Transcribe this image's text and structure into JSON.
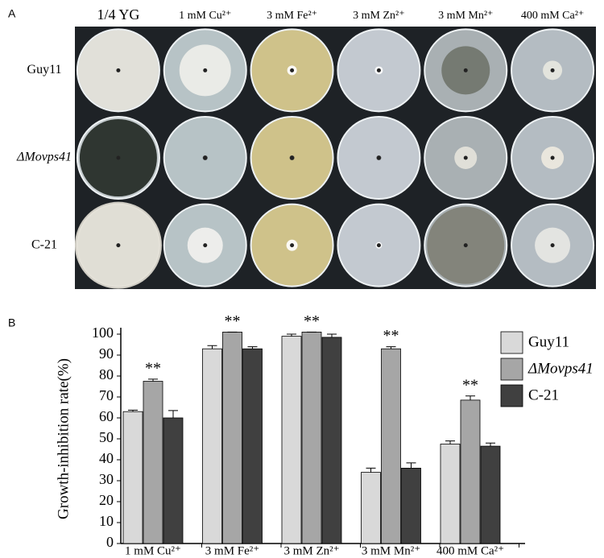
{
  "panel_a": {
    "label": "A",
    "columns": [
      "1/4 YG",
      "1 mM Cu²⁺",
      "3 mM Fe²⁺",
      "3 mM Zn²⁺",
      "3 mM Mn²⁺",
      "400 mM Ca²⁺"
    ],
    "rows": [
      "Guy11",
      "ΔMovps41",
      "C-21"
    ]
  },
  "chart_data": {
    "type": "bar",
    "label": "B",
    "y_label": "Growth-inhibition rate(%)",
    "categories": [
      "1 mM Cu²⁺",
      "3 mM Fe²⁺",
      "3 mM Zn²⁺",
      "3 mM Mn²⁺",
      "400 mM Ca²⁺"
    ],
    "series": [
      {
        "name": "Guy11",
        "color": "#d9d9d9",
        "values": [
          63,
          93,
          99,
          34,
          47.5
        ],
        "errors": [
          0.7,
          1.5,
          1,
          2,
          1.5
        ]
      },
      {
        "name": "ΔMovps41",
        "color": "#a6a6a6",
        "values": [
          77.5,
          101,
          101,
          93,
          68.5
        ],
        "errors": [
          1,
          0,
          0,
          1,
          2
        ]
      },
      {
        "name": "C-21",
        "color": "#404040",
        "values": [
          60,
          93,
          98.5,
          36,
          46.5
        ],
        "errors": [
          3.5,
          1,
          1.5,
          2.5,
          1.5
        ]
      }
    ],
    "annotations": [
      "**",
      "**",
      "**",
      "**",
      "**"
    ],
    "ylim": [
      0,
      100
    ],
    "yticks": [
      0,
      10,
      20,
      30,
      40,
      50,
      60,
      70,
      80,
      90,
      100
    ],
    "legend": "top-right"
  }
}
